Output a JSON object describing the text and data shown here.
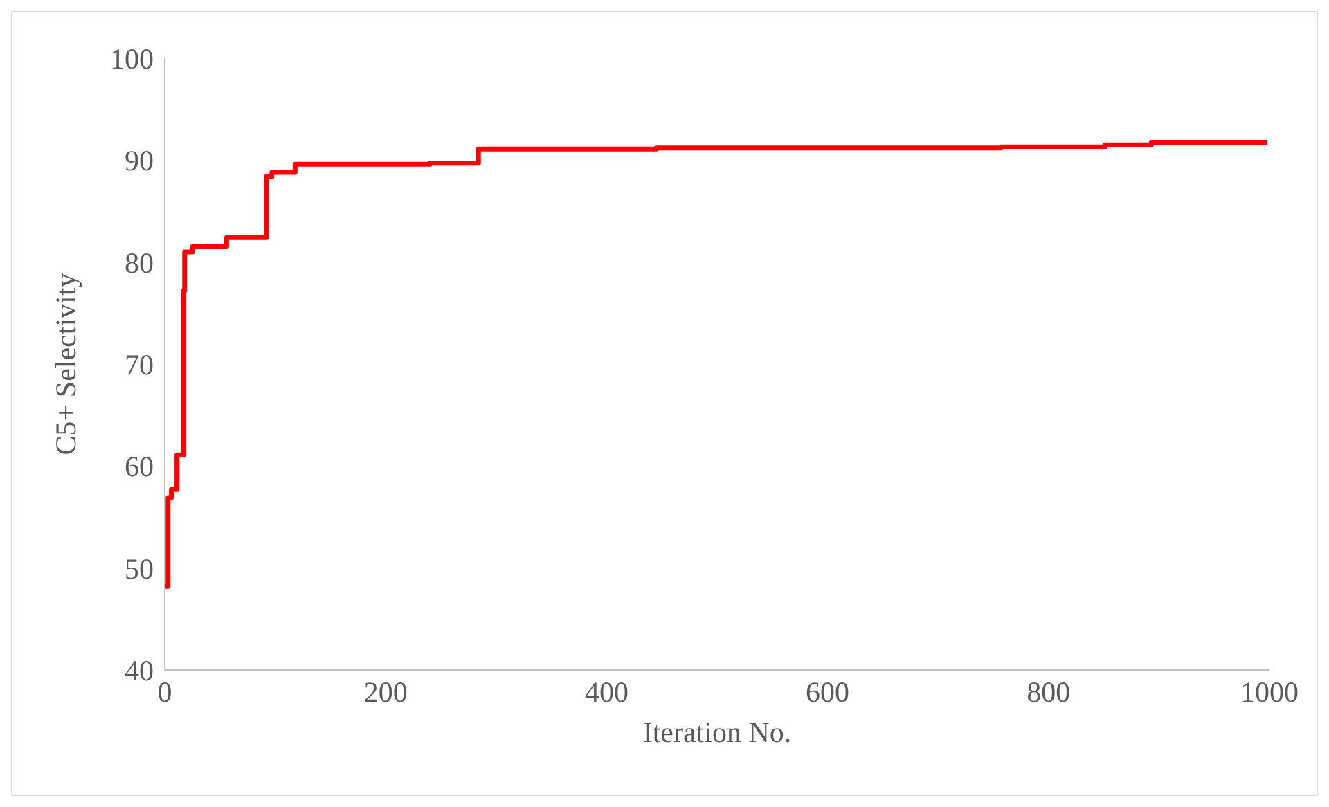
{
  "chart_data": {
    "type": "step",
    "xlabel": "Iteration No.",
    "ylabel": "C5+ Selectivity",
    "x": [
      0,
      3,
      6,
      11,
      17,
      18,
      25,
      56,
      92,
      97,
      118,
      240,
      284,
      445,
      757,
      851,
      893,
      998
    ],
    "series": [
      {
        "color": "#ff0000",
        "values": [
          48.2,
          56.9,
          57.7,
          61.1,
          77.2,
          81.0,
          81.5,
          82.4,
          88.4,
          88.8,
          89.6,
          89.7,
          91.1,
          91.2,
          91.3,
          91.5,
          91.7,
          91.7
        ]
      }
    ],
    "xlim": [
      0,
      1000
    ],
    "xticks": [
      0,
      200,
      400,
      600,
      800,
      1000
    ],
    "ylim": [
      40,
      100
    ],
    "yticks": [
      40,
      50,
      60,
      70,
      80,
      90,
      100
    ],
    "grid": false,
    "legend": false,
    "marker": "none",
    "line_style": "solid"
  }
}
